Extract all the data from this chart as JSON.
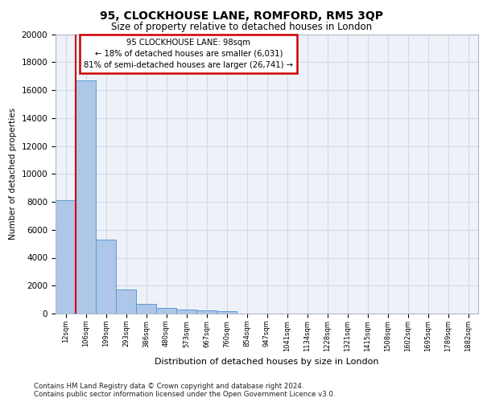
{
  "title": "95, CLOCKHOUSE LANE, ROMFORD, RM5 3QP",
  "subtitle": "Size of property relative to detached houses in London",
  "xlabel": "Distribution of detached houses by size in London",
  "ylabel": "Number of detached properties",
  "categories": [
    "12sqm",
    "106sqm",
    "199sqm",
    "293sqm",
    "386sqm",
    "480sqm",
    "573sqm",
    "667sqm",
    "760sqm",
    "854sqm",
    "947sqm",
    "1041sqm",
    "1134sqm",
    "1228sqm",
    "1321sqm",
    "1415sqm",
    "1508sqm",
    "1602sqm",
    "1695sqm",
    "1789sqm",
    "1882sqm"
  ],
  "bar_heights": [
    8100,
    16700,
    5300,
    1750,
    700,
    380,
    270,
    220,
    190,
    0,
    0,
    0,
    0,
    0,
    0,
    0,
    0,
    0,
    0,
    0,
    0
  ],
  "bar_color": "#aec6e8",
  "bar_edge_color": "#5a9bd5",
  "annotation_title": "95 CLOCKHOUSE LANE: 98sqm",
  "annotation_line1": "← 18% of detached houses are smaller (6,031)",
  "annotation_line2": "81% of semi-detached houses are larger (26,741) →",
  "annotation_box_color": "#ffffff",
  "annotation_box_edge_color": "#cc0000",
  "grid_color": "#d0d8e8",
  "background_color": "#eef2f8",
  "ylim": [
    0,
    20000
  ],
  "yticks": [
    0,
    2000,
    4000,
    6000,
    8000,
    10000,
    12000,
    14000,
    16000,
    18000,
    20000
  ],
  "property_line_color": "#cc0000",
  "footnote1": "Contains HM Land Registry data © Crown copyright and database right 2024.",
  "footnote2": "Contains public sector information licensed under the Open Government Licence v3.0."
}
